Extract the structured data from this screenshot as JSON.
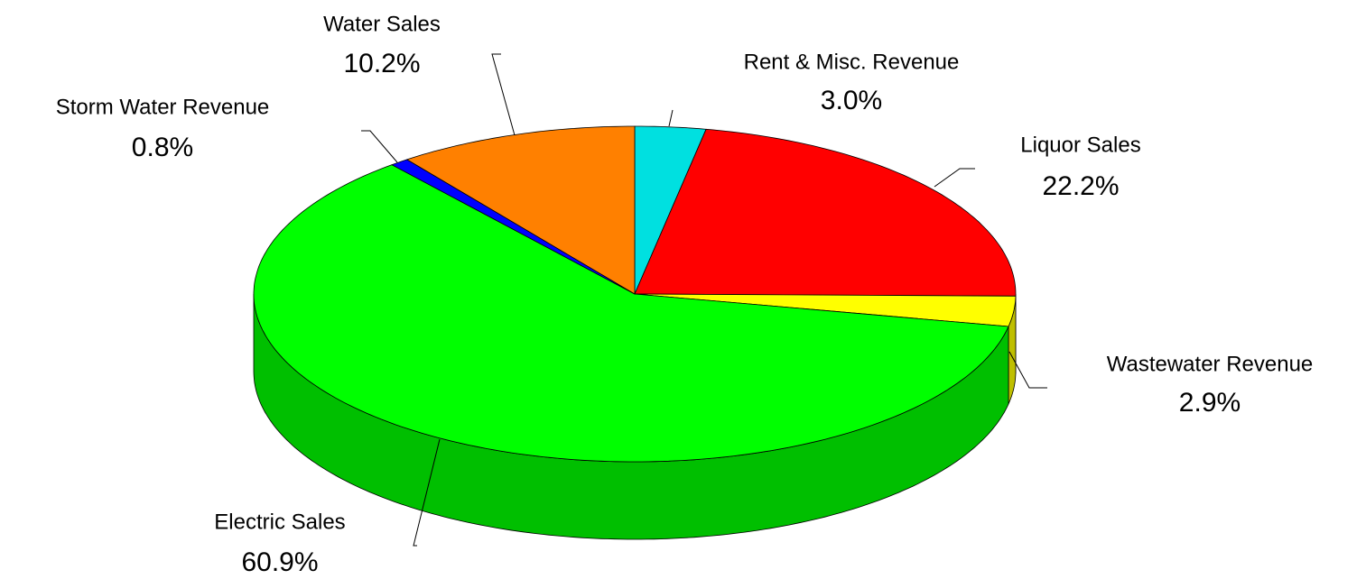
{
  "chart_data": {
    "type": "pie",
    "categories": [
      "Rent & Misc. Revenue",
      "Liquor Sales",
      "Wastewater Revenue",
      "Electric Sales",
      "Storm Water Revenue",
      "Water Sales"
    ],
    "values": [
      3.0,
      22.2,
      2.9,
      60.9,
      0.8,
      10.2
    ],
    "value_labels": [
      "3.0%",
      "22.2%",
      "2.9%",
      "60.9%",
      "0.8%",
      "10.2%"
    ],
    "colors": [
      "#00e0e0",
      "#ff0000",
      "#ffff00",
      "#00ff00",
      "#0000ff",
      "#ff8000"
    ]
  }
}
